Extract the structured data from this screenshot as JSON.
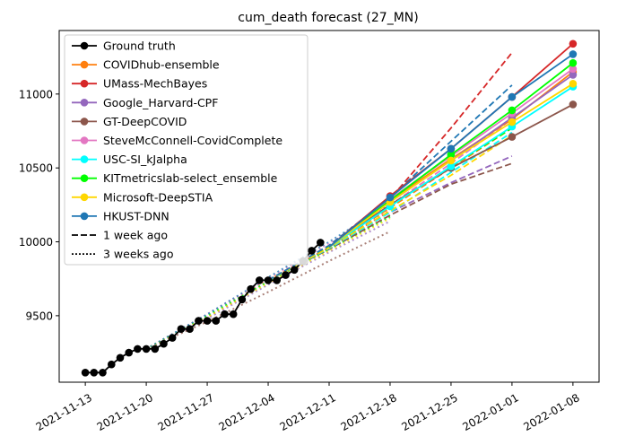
{
  "chart_data": {
    "type": "line",
    "title": "cum_death forecast (27_MN)",
    "xlabel": "",
    "ylabel": "",
    "x_ticks": [
      "2021-11-13",
      "2021-11-20",
      "2021-11-27",
      "2021-12-04",
      "2021-12-11",
      "2021-12-18",
      "2021-12-25",
      "2022-01-01",
      "2022-01-08"
    ],
    "y_ticks": [
      9500,
      10000,
      10500,
      11000
    ],
    "xlim": [
      "2021-11-10",
      "2022-01-11"
    ],
    "ylim": [
      9050,
      11430
    ],
    "grid": false,
    "legend_position": "top-left",
    "ground_truth": {
      "name": "Ground truth",
      "color": "#000000",
      "points": [
        [
          "2021-11-13",
          9115
        ],
        [
          "2021-11-14",
          9115
        ],
        [
          "2021-11-15",
          9115
        ],
        [
          "2021-11-16",
          9170
        ],
        [
          "2021-11-17",
          9215
        ],
        [
          "2021-11-18",
          9250
        ],
        [
          "2021-11-19",
          9275
        ],
        [
          "2021-11-20",
          9275
        ],
        [
          "2021-11-21",
          9275
        ],
        [
          "2021-11-22",
          9310
        ],
        [
          "2021-11-23",
          9350
        ],
        [
          "2021-11-24",
          9410
        ],
        [
          "2021-11-25",
          9410
        ],
        [
          "2021-11-26",
          9465
        ],
        [
          "2021-11-27",
          9465
        ],
        [
          "2021-11-28",
          9465
        ],
        [
          "2021-11-29",
          9510
        ],
        [
          "2021-11-30",
          9510
        ],
        [
          "2021-12-01",
          9610
        ],
        [
          "2021-12-02",
          9680
        ],
        [
          "2021-12-03",
          9740
        ],
        [
          "2021-12-04",
          9740
        ],
        [
          "2021-12-05",
          9740
        ],
        [
          "2021-12-06",
          9775
        ],
        [
          "2021-12-07",
          9810
        ],
        [
          "2021-12-08",
          9870
        ],
        [
          "2021-12-09",
          9940
        ],
        [
          "2021-12-10",
          9995
        ]
      ]
    },
    "series": [
      {
        "name": "COVIDhub-ensemble",
        "color": "#ff7f0e",
        "current": [
          [
            "2021-12-11",
            9965
          ],
          [
            "2021-12-18",
            10280
          ],
          [
            "2021-12-25",
            10560
          ],
          [
            "2022-01-01",
            10830
          ],
          [
            "2022-01-08",
            11150
          ]
        ],
        "one_week_ago": [
          [
            "2021-12-04",
            9740
          ],
          [
            "2021-12-11",
            9965
          ],
          [
            "2021-12-18",
            10230
          ],
          [
            "2021-12-25",
            10500
          ],
          [
            "2022-01-01",
            10770
          ]
        ],
        "three_weeks_ago": [
          [
            "2021-11-20",
            9275
          ],
          [
            "2021-11-27",
            9500
          ],
          [
            "2021-12-04",
            9740
          ],
          [
            "2021-12-11",
            9960
          ],
          [
            "2021-12-18",
            10180
          ]
        ]
      },
      {
        "name": "UMass-MechBayes",
        "color": "#d62728",
        "current": [
          [
            "2021-12-11",
            9965
          ],
          [
            "2021-12-18",
            10310
          ],
          [
            "2021-12-25",
            10630
          ],
          [
            "2022-01-01",
            10980
          ],
          [
            "2022-01-08",
            11340
          ]
        ],
        "one_week_ago": [
          [
            "2021-12-04",
            9740
          ],
          [
            "2021-12-11",
            9975
          ],
          [
            "2021-12-18",
            10290
          ],
          [
            "2021-12-25",
            10770
          ],
          [
            "2022-01-01",
            11280
          ]
        ],
        "three_weeks_ago": [
          [
            "2021-11-20",
            9275
          ],
          [
            "2021-11-27",
            9490
          ],
          [
            "2021-12-04",
            9730
          ],
          [
            "2021-12-11",
            9960
          ],
          [
            "2021-12-18",
            10210
          ]
        ]
      },
      {
        "name": "Google_Harvard-CPF",
        "color": "#9467bd",
        "current": [
          [
            "2021-12-11",
            9965
          ],
          [
            "2021-12-18",
            10270
          ],
          [
            "2021-12-25",
            10550
          ],
          [
            "2022-01-01",
            10840
          ],
          [
            "2022-01-08",
            11130
          ]
        ],
        "one_week_ago": [
          [
            "2021-12-04",
            9740
          ],
          [
            "2021-12-11",
            9960
          ],
          [
            "2021-12-18",
            10200
          ],
          [
            "2021-12-25",
            10400
          ],
          [
            "2022-01-01",
            10580
          ]
        ],
        "three_weeks_ago": [
          [
            "2021-11-20",
            9275
          ],
          [
            "2021-11-27",
            9480
          ],
          [
            "2021-12-04",
            9710
          ],
          [
            "2021-12-11",
            9930
          ],
          [
            "2021-12-18",
            10140
          ]
        ]
      },
      {
        "name": "GT-DeepCOVID",
        "color": "#8c564b",
        "current": [
          [
            "2021-12-11",
            9965
          ],
          [
            "2021-12-18",
            10250
          ],
          [
            "2021-12-25",
            10500
          ],
          [
            "2022-01-01",
            10710
          ],
          [
            "2022-01-08",
            10930
          ]
        ],
        "one_week_ago": [
          [
            "2021-12-04",
            9740
          ],
          [
            "2021-12-11",
            9950
          ],
          [
            "2021-12-18",
            10180
          ],
          [
            "2021-12-25",
            10390
          ],
          [
            "2022-01-01",
            10530
          ]
        ],
        "three_weeks_ago": [
          [
            "2021-11-20",
            9275
          ],
          [
            "2021-11-27",
            9460
          ],
          [
            "2021-12-04",
            9660
          ],
          [
            "2021-12-11",
            9870
          ],
          [
            "2021-12-18",
            10070
          ]
        ]
      },
      {
        "name": "SteveMcConnell-CovidComplete",
        "color": "#e377c2",
        "current": [
          [
            "2021-12-11",
            9965
          ],
          [
            "2021-12-18",
            10290
          ],
          [
            "2021-12-25",
            10580
          ],
          [
            "2022-01-01",
            10870
          ],
          [
            "2022-01-08",
            11170
          ]
        ],
        "one_week_ago": [
          [
            "2021-12-04",
            9740
          ],
          [
            "2021-12-11",
            9970
          ],
          [
            "2021-12-18",
            10250
          ],
          [
            "2021-12-25",
            10530
          ],
          [
            "2022-01-01",
            10830
          ]
        ],
        "three_weeks_ago": [
          [
            "2021-11-20",
            9275
          ],
          [
            "2021-11-27",
            9510
          ],
          [
            "2021-12-04",
            9750
          ],
          [
            "2021-12-11",
            9990
          ],
          [
            "2021-12-18",
            10220
          ]
        ]
      },
      {
        "name": "USC-SI_kJalpha",
        "color": "#00ffff",
        "current": [
          [
            "2021-12-11",
            9965
          ],
          [
            "2021-12-18",
            10240
          ],
          [
            "2021-12-25",
            10510
          ],
          [
            "2022-01-01",
            10780
          ],
          [
            "2022-01-08",
            11050
          ]
        ],
        "one_week_ago": [
          [
            "2021-12-04",
            9740
          ],
          [
            "2021-12-11",
            9955
          ],
          [
            "2021-12-18",
            10200
          ],
          [
            "2021-12-25",
            10470
          ],
          [
            "2022-01-01",
            10740
          ]
        ],
        "three_weeks_ago": [
          [
            "2021-11-20",
            9275
          ],
          [
            "2021-11-27",
            9500
          ],
          [
            "2021-12-04",
            9730
          ],
          [
            "2021-12-11",
            9950
          ],
          [
            "2021-12-18",
            10170
          ]
        ]
      },
      {
        "name": "KITmetricslab-select_ensemble",
        "color": "#00ff00",
        "current": [
          [
            "2021-12-11",
            9965
          ],
          [
            "2021-12-18",
            10280
          ],
          [
            "2021-12-25",
            10590
          ],
          [
            "2022-01-01",
            10890
          ],
          [
            "2022-01-08",
            11210
          ]
        ],
        "one_week_ago": [
          [
            "2021-12-04",
            9740
          ],
          [
            "2021-12-11",
            9970
          ],
          [
            "2021-12-18",
            10240
          ],
          [
            "2021-12-25",
            10510
          ],
          [
            "2022-01-01",
            10770
          ]
        ],
        "three_weeks_ago": [
          [
            "2021-11-20",
            9275
          ],
          [
            "2021-11-27",
            9500
          ],
          [
            "2021-12-04",
            9730
          ],
          [
            "2021-12-11",
            9950
          ],
          [
            "2021-12-18",
            10170
          ]
        ]
      },
      {
        "name": "Microsoft-DeepSTIA",
        "color": "#ffd700",
        "current": [
          [
            "2021-12-11",
            9965
          ],
          [
            "2021-12-18",
            10270
          ],
          [
            "2021-12-25",
            10550
          ],
          [
            "2022-01-01",
            10810
          ],
          [
            "2022-01-08",
            11070
          ]
        ],
        "one_week_ago": [
          [
            "2021-12-04",
            9740
          ],
          [
            "2021-12-11",
            9960
          ],
          [
            "2021-12-18",
            10210
          ],
          [
            "2021-12-25",
            10450
          ],
          [
            "2022-01-01",
            10720
          ]
        ],
        "three_weeks_ago": [
          [
            "2021-11-20",
            9275
          ],
          [
            "2021-11-27",
            9490
          ],
          [
            "2021-12-04",
            9720
          ],
          [
            "2021-12-11",
            9940
          ],
          [
            "2021-12-18",
            10160
          ]
        ]
      },
      {
        "name": "HKUST-DNN",
        "color": "#1f77b4",
        "current": [
          [
            "2021-12-11",
            9965
          ],
          [
            "2021-12-18",
            10300
          ],
          [
            "2021-12-25",
            10630
          ],
          [
            "2022-01-01",
            10980
          ],
          [
            "2022-01-08",
            11270
          ]
        ],
        "one_week_ago": [
          [
            "2021-12-04",
            9740
          ],
          [
            "2021-12-11",
            9975
          ],
          [
            "2021-12-18",
            10300
          ],
          [
            "2021-12-25",
            10680
          ],
          [
            "2022-01-01",
            11060
          ]
        ],
        "three_weeks_ago": [
          [
            "2021-11-20",
            9275
          ],
          [
            "2021-11-27",
            9510
          ],
          [
            "2021-12-04",
            9760
          ],
          [
            "2021-12-11",
            10000
          ],
          [
            "2021-12-18",
            10260
          ]
        ]
      }
    ],
    "legend": [
      {
        "label": "Ground truth",
        "color": "#000000",
        "style": "solid-marker"
      },
      {
        "label": "COVIDhub-ensemble",
        "color": "#ff7f0e",
        "style": "solid-marker"
      },
      {
        "label": "UMass-MechBayes",
        "color": "#d62728",
        "style": "solid-marker"
      },
      {
        "label": "Google_Harvard-CPF",
        "color": "#9467bd",
        "style": "solid-marker"
      },
      {
        "label": "GT-DeepCOVID",
        "color": "#8c564b",
        "style": "solid-marker"
      },
      {
        "label": "SteveMcConnell-CovidComplete",
        "color": "#e377c2",
        "style": "solid-marker"
      },
      {
        "label": "USC-SI_kJalpha",
        "color": "#00ffff",
        "style": "solid-marker"
      },
      {
        "label": "KITmetricslab-select_ensemble",
        "color": "#00ff00",
        "style": "solid-marker"
      },
      {
        "label": "Microsoft-DeepSTIA",
        "color": "#ffd700",
        "style": "solid-marker"
      },
      {
        "label": "HKUST-DNN",
        "color": "#1f77b4",
        "style": "solid-marker"
      },
      {
        "label": "1 week ago",
        "color": "#000000",
        "style": "dashed"
      },
      {
        "label": "3 weeks ago",
        "color": "#000000",
        "style": "dotted"
      }
    ]
  }
}
